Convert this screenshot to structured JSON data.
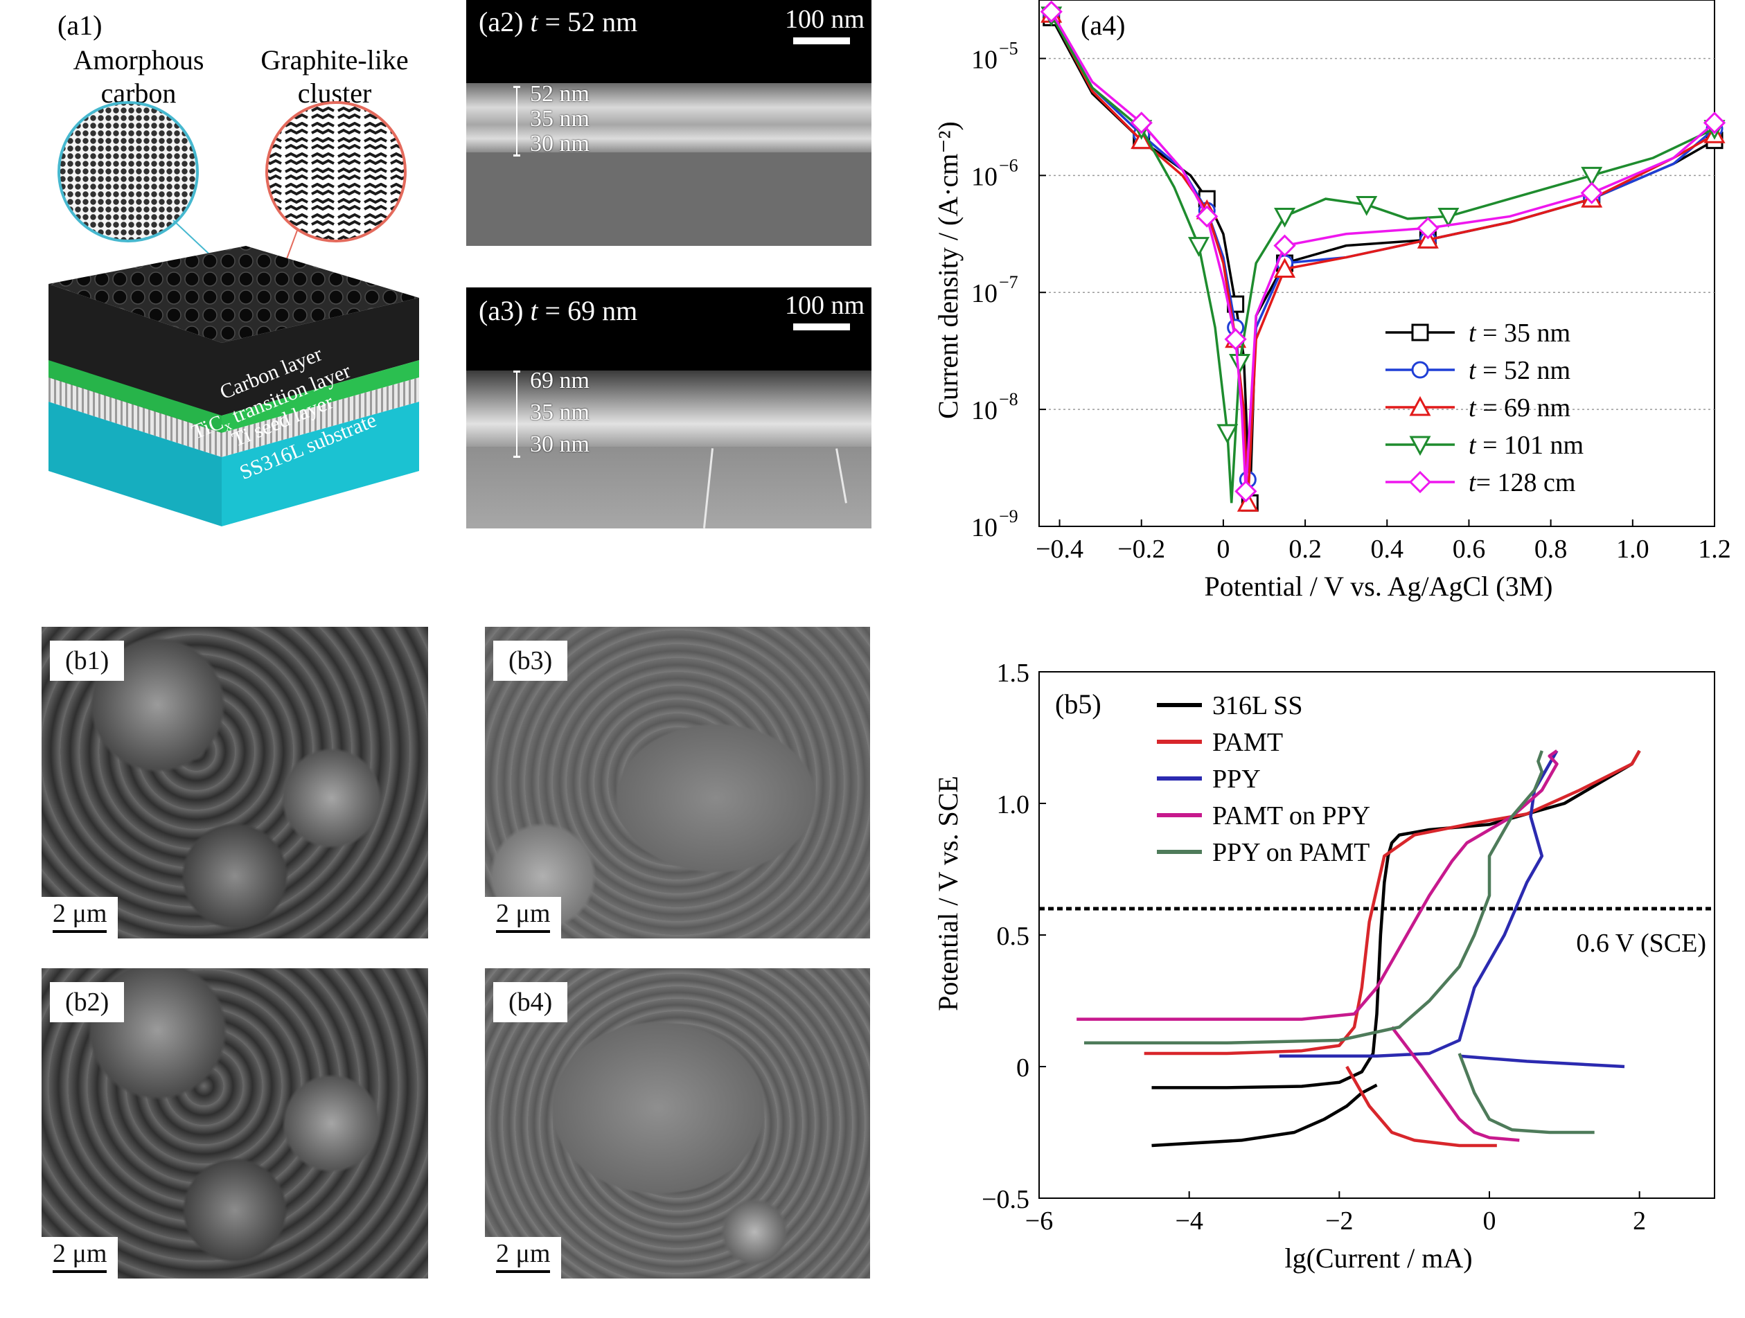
{
  "a1": {
    "tag": "(a1)",
    "amorphous_label": [
      "Amorphous",
      "carbon"
    ],
    "graphite_label": [
      "Graphite-like",
      "cluster"
    ],
    "layers": [
      "Carbon layer",
      "TiC",
      "x",
      " transition layer",
      "Ti seed layer",
      "SS316L substrate"
    ]
  },
  "a2": {
    "tag": "(a2)",
    "t_eq": "t",
    "t_val": " = 52 nm",
    "scale": "100 nm",
    "thickness": [
      "52 nm",
      "35 nm",
      "30 nm"
    ]
  },
  "a3": {
    "tag": "(a3)",
    "t_eq": "t",
    "t_val": " = 69 nm",
    "scale": "100 nm",
    "thickness": [
      "69 nm",
      "35 nm",
      "30 nm"
    ]
  },
  "b_images": [
    {
      "tag": "(b1)",
      "scale": "2 μm"
    },
    {
      "tag": "(b2)",
      "scale": "2 μm"
    },
    {
      "tag": "(b3)",
      "scale": "2 μm"
    },
    {
      "tag": "(b4)",
      "scale": "2 μm"
    }
  ],
  "chart_data": [
    {
      "type": "line",
      "panel": "(a4)",
      "xlabel": "Potential / V vs. Ag/AgCl (3M)",
      "ylabel": "Current density / (A·cm⁻²)",
      "xlim": [
        -0.45,
        1.2
      ],
      "ylim_log10": [
        -9,
        -4.5
      ],
      "y_scale": "log",
      "x_ticks": [
        "−0.4",
        "−0.2",
        "0",
        "0.2",
        "0.4",
        "0.6",
        "0.8",
        "1.0",
        "1.2"
      ],
      "y_ticks": [
        "10",
        "10",
        "10",
        "10",
        "10"
      ],
      "y_tick_exp": [
        "−5",
        "−6",
        "−7",
        "−8",
        "−9"
      ],
      "legend_position": "bottom-right",
      "series": [
        {
          "name": "t = 35 nm",
          "prefix": "t",
          "suffix": " = 35 nm",
          "color": "#000000",
          "marker": "square",
          "x": [
            -0.42,
            -0.32,
            -0.2,
            -0.08,
            -0.04,
            0.0,
            0.03,
            0.05,
            0.065,
            0.08,
            0.15,
            0.3,
            0.5,
            0.7,
            0.9,
            1.1,
            1.2
          ],
          "y": [
            -4.65,
            -5.3,
            -5.7,
            -6.0,
            -6.2,
            -6.5,
            -7.1,
            -7.55,
            -8.8,
            -7.2,
            -6.75,
            -6.6,
            -6.55,
            -6.4,
            -6.2,
            -5.9,
            -5.7
          ]
        },
        {
          "name": "t = 52 nm",
          "prefix": "t",
          "suffix": " = 52 nm",
          "color": "#1f3fd6",
          "marker": "circle",
          "x": [
            -0.42,
            -0.32,
            -0.2,
            -0.1,
            -0.04,
            0.0,
            0.03,
            0.045,
            0.06,
            0.08,
            0.15,
            0.3,
            0.5,
            0.7,
            0.9,
            1.1,
            1.2
          ],
          "y": [
            -4.62,
            -5.25,
            -5.65,
            -5.95,
            -6.3,
            -6.7,
            -7.3,
            -7.95,
            -8.6,
            -7.3,
            -6.75,
            -6.7,
            -6.55,
            -6.4,
            -6.2,
            -5.9,
            -5.6
          ]
        },
        {
          "name": "t = 69 nm",
          "prefix": "t",
          "suffix": " = 69 nm",
          "color": "#e21a1a",
          "marker": "triangle-up",
          "x": [
            -0.42,
            -0.32,
            -0.2,
            -0.1,
            -0.04,
            0.0,
            0.03,
            0.05,
            0.06,
            0.08,
            0.15,
            0.3,
            0.5,
            0.7,
            0.9,
            1.1,
            1.2
          ],
          "y": [
            -4.62,
            -5.28,
            -5.7,
            -6.0,
            -6.3,
            -6.75,
            -7.4,
            -8.0,
            -8.8,
            -7.4,
            -6.8,
            -6.7,
            -6.55,
            -6.4,
            -6.2,
            -5.85,
            -5.65
          ]
        },
        {
          "name": "t = 101 nm",
          "prefix": "t",
          "suffix": " = 101 nm",
          "color": "#1e8c2e",
          "marker": "triangle-down",
          "x": [
            -0.42,
            -0.32,
            -0.2,
            -0.12,
            -0.06,
            -0.02,
            0.01,
            0.02,
            0.04,
            0.08,
            0.15,
            0.25,
            0.35,
            0.45,
            0.55,
            0.7,
            0.9,
            1.05,
            1.2
          ],
          "y": [
            -4.63,
            -5.25,
            -5.6,
            -6.1,
            -6.6,
            -7.3,
            -8.2,
            -8.8,
            -7.6,
            -6.75,
            -6.35,
            -6.2,
            -6.25,
            -6.37,
            -6.35,
            -6.2,
            -6.0,
            -5.85,
            -5.6
          ]
        },
        {
          "name": "t= 128 cm",
          "prefix": "t",
          "suffix": "= 128 cm",
          "color": "#ee17ee",
          "marker": "diamond",
          "x": [
            -0.42,
            -0.32,
            -0.2,
            -0.1,
            -0.04,
            0.0,
            0.03,
            0.045,
            0.055,
            0.08,
            0.15,
            0.3,
            0.5,
            0.7,
            0.9,
            1.1,
            1.2
          ],
          "y": [
            -4.6,
            -5.2,
            -5.55,
            -5.95,
            -6.35,
            -6.9,
            -7.4,
            -8.0,
            -8.7,
            -7.2,
            -6.6,
            -6.5,
            -6.45,
            -6.35,
            -6.15,
            -5.85,
            -5.55
          ]
        }
      ]
    },
    {
      "type": "line",
      "panel": "(b5)",
      "xlabel": "lg(Current / mA)",
      "ylabel": "Potential / V vs. SCE",
      "xlim": [
        -6,
        3
      ],
      "ylim": [
        -0.5,
        1.5
      ],
      "x_ticks": [
        "−6",
        "−4",
        "−2",
        "0",
        "2"
      ],
      "y_ticks": [
        "−0.5",
        "0",
        "0.5",
        "1.0",
        "1.5"
      ],
      "legend_position": "top-left",
      "reference_line": {
        "y": 0.6,
        "label": "0.6 V (SCE)"
      },
      "series": [
        {
          "name": "316L SS",
          "color": "#000000",
          "x": [
            -4.5,
            -3.5,
            -2.5,
            -2.0,
            -1.7,
            -1.55,
            -1.5,
            -1.45,
            -1.4,
            -1.35,
            -1.3,
            -1.2,
            -0.8,
            0,
            1.0,
            1.9,
            2.0,
            null,
            -1.5,
            -1.7,
            -1.9,
            -2.2,
            -2.6,
            -3.3,
            -4.5
          ],
          "y": [
            -0.08,
            -0.08,
            -0.075,
            -0.06,
            -0.02,
            0.05,
            0.2,
            0.5,
            0.7,
            0.8,
            0.85,
            0.88,
            0.9,
            0.92,
            1.0,
            1.15,
            1.2,
            null,
            -0.07,
            -0.1,
            -0.15,
            -0.2,
            -0.25,
            -0.28,
            -0.3
          ]
        },
        {
          "name": "PAMT",
          "color": "#d8262b",
          "x": [
            -4.6,
            -3.5,
            -2.5,
            -2.0,
            -1.8,
            -1.7,
            -1.6,
            -1.4,
            -1.0,
            -0.3,
            0.5,
            1.2,
            1.9,
            2.0,
            null,
            -1.9,
            -1.6,
            -1.3,
            -1.0,
            -0.4,
            0.1
          ],
          "y": [
            0.05,
            0.05,
            0.06,
            0.08,
            0.15,
            0.3,
            0.55,
            0.8,
            0.88,
            0.92,
            0.96,
            1.05,
            1.15,
            1.2,
            null,
            0.0,
            -0.15,
            -0.25,
            -0.28,
            -0.3,
            -0.3
          ]
        },
        {
          "name": "PPY",
          "color": "#2b2ab0",
          "x": [
            -2.8,
            -1.5,
            -0.8,
            -0.4,
            -0.3,
            -0.2,
            0,
            0.2,
            0.5,
            0.7,
            0.55,
            0.6,
            0.8,
            0.9,
            null,
            -0.4,
            0.5,
            1.8
          ],
          "y": [
            0.04,
            0.04,
            0.05,
            0.1,
            0.2,
            0.3,
            0.4,
            0.5,
            0.7,
            0.8,
            0.95,
            1.05,
            1.15,
            1.2,
            null,
            0.04,
            0.02,
            0.0
          ]
        },
        {
          "name": "PAMT on PPY",
          "color": "#c7198d",
          "x": [
            -5.5,
            -4.0,
            -2.5,
            -1.8,
            -1.5,
            -1.2,
            -0.8,
            -0.5,
            -0.3,
            0.3,
            0.7,
            0.9,
            0.8,
            0.9,
            null,
            -1.3,
            -0.9,
            -0.6,
            -0.4,
            -0.2,
            0.0,
            0.4
          ],
          "y": [
            0.18,
            0.18,
            0.18,
            0.2,
            0.3,
            0.45,
            0.65,
            0.78,
            0.85,
            0.95,
            1.05,
            1.15,
            1.18,
            1.2,
            null,
            0.15,
            0.0,
            -0.12,
            -0.2,
            -0.25,
            -0.27,
            -0.28
          ]
        },
        {
          "name": "PPY on PAMT",
          "color": "#4e7b5a",
          "x": [
            -5.4,
            -3.5,
            -2.0,
            -1.2,
            -0.8,
            -0.4,
            -0.2,
            0,
            0.0,
            0.3,
            0.6,
            0.7,
            0.65,
            0.7,
            null,
            -0.4,
            -0.2,
            0.0,
            0.3,
            0.8,
            1.4
          ],
          "y": [
            0.09,
            0.09,
            0.1,
            0.15,
            0.25,
            0.38,
            0.5,
            0.65,
            0.8,
            0.95,
            1.05,
            1.12,
            1.16,
            1.2,
            null,
            0.05,
            -0.1,
            -0.2,
            -0.24,
            -0.25,
            -0.25
          ]
        }
      ]
    }
  ]
}
